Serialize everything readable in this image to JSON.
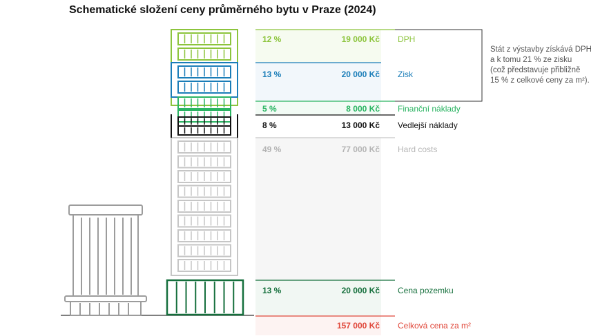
{
  "chart_data": {
    "type": "table",
    "title": "Schematické složení ceny průměrného bytu v Praze (2024)",
    "rows": [
      {
        "key": "dph",
        "share": "12 %",
        "value": "19 000 Kč",
        "label": "DPH",
        "color": "#8cc43c",
        "text_color": "#8cc43c"
      },
      {
        "key": "zisk",
        "share": "13 %",
        "value": "20 000 Kč",
        "label": "Zisk",
        "color": "#1a7db8",
        "text_color": "#1a7db8"
      },
      {
        "key": "financni",
        "share": "5 %",
        "value": "8 000 Kč",
        "label": "Finanční náklady",
        "color": "#2ab462",
        "text_color": "#2ab462"
      },
      {
        "key": "vedlejsi",
        "share": "8 %",
        "value": "13 000 Kč",
        "label": "Vedlejší náklady",
        "color": "#111111",
        "text_color": "#111111"
      },
      {
        "key": "hard",
        "share": "49 %",
        "value": "77 000 Kč",
        "label": "Hard costs",
        "color": "#c6c6c6",
        "text_color": "#b4b4b4"
      },
      {
        "key": "pozemek",
        "share": "13 %",
        "value": "20 000 Kč",
        "label": "Cena pozemku",
        "color": "#156f3c",
        "text_color": "#156f3c"
      },
      {
        "key": "celkem",
        "share": "",
        "value": "157 000 Kč",
        "label": "Celková cena za m²",
        "color": "#e0473a",
        "text_color": "#e0473a"
      }
    ],
    "note_lines": [
      "Stát z výstavby získává DPH",
      "a k tomu 21 % ze zisku",
      "(což představuje přibližně",
      "15 % z celkové ceny za m²)."
    ]
  }
}
